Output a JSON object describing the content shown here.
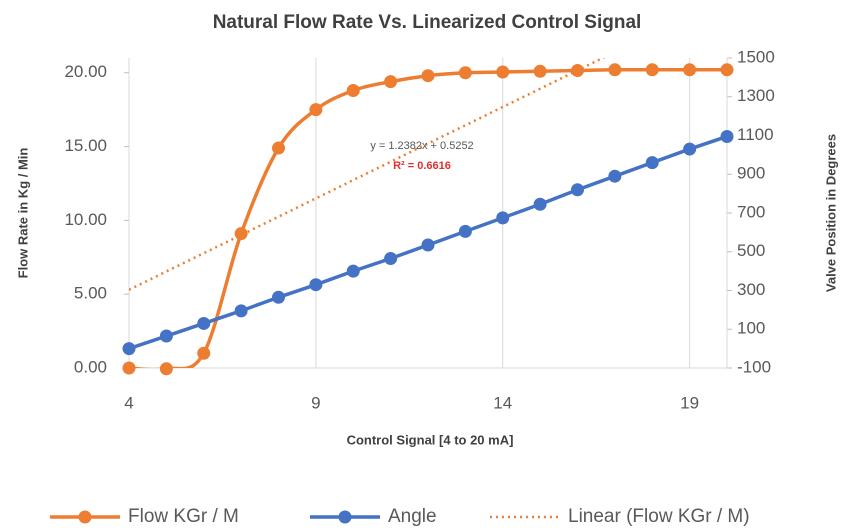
{
  "chart_data": {
    "type": "line",
    "title": "Natural Flow Rate Vs. Linearized Control Signal",
    "x_label": "Control Signal [4 to 20 mA]",
    "y_label": "Flow Rate in Kg / Min",
    "y2_label": "Valve Position in Degrees",
    "x": [
      4,
      5,
      6,
      7,
      8,
      9,
      10,
      11,
      12,
      13,
      14,
      15,
      16,
      17,
      18,
      19,
      20
    ],
    "xlim": [
      4,
      20
    ],
    "xticks": [
      4,
      9,
      14,
      19
    ],
    "ylim": [
      0,
      21
    ],
    "yticks": [
      {
        "value": 0,
        "label": "0.00"
      },
      {
        "value": 5,
        "label": "5.00"
      },
      {
        "value": 10,
        "label": "10.00"
      },
      {
        "value": 15,
        "label": "15.00"
      },
      {
        "value": 20,
        "label": "20.00"
      }
    ],
    "y2lim": [
      -100,
      1500
    ],
    "y2ticks": [
      -100,
      100,
      300,
      500,
      700,
      900,
      1100,
      1300,
      1500
    ],
    "xgrid": true,
    "series": [
      {
        "name": "Flow KGr / M",
        "color": "#ed7d31",
        "style": "smooth",
        "markers": true,
        "values": [
          0,
          -0.05,
          1.0,
          9.1,
          14.9,
          17.5,
          18.8,
          19.4,
          19.8,
          20.0,
          20.05,
          20.1,
          20.15,
          20.2,
          20.2,
          20.2,
          20.2
        ]
      },
      {
        "name": "Angle",
        "color": "#4472c4",
        "style": "straight",
        "markers": true,
        "axis": "y2",
        "values": [
          0,
          65,
          130,
          195,
          265,
          330,
          400,
          465,
          535,
          605,
          675,
          745,
          820,
          890,
          960,
          1030,
          1095
        ]
      },
      {
        "name": "Linear (Flow KGr / M)",
        "color": "#ed7d31",
        "style": "dotted",
        "markers": false,
        "values": [
          5.3,
          6.54,
          7.78,
          9.01,
          10.25,
          11.49,
          12.73,
          13.97,
          15.21,
          16.44,
          17.68,
          18.92,
          20.16,
          21.4,
          null,
          null,
          null
        ]
      }
    ],
    "annotations": [
      {
        "text": "y = 1.2382x + 0.5252",
        "color": "#595959"
      },
      {
        "text": "R² = 0.6616",
        "color": "#e03030"
      }
    ],
    "legend": "bottom"
  }
}
